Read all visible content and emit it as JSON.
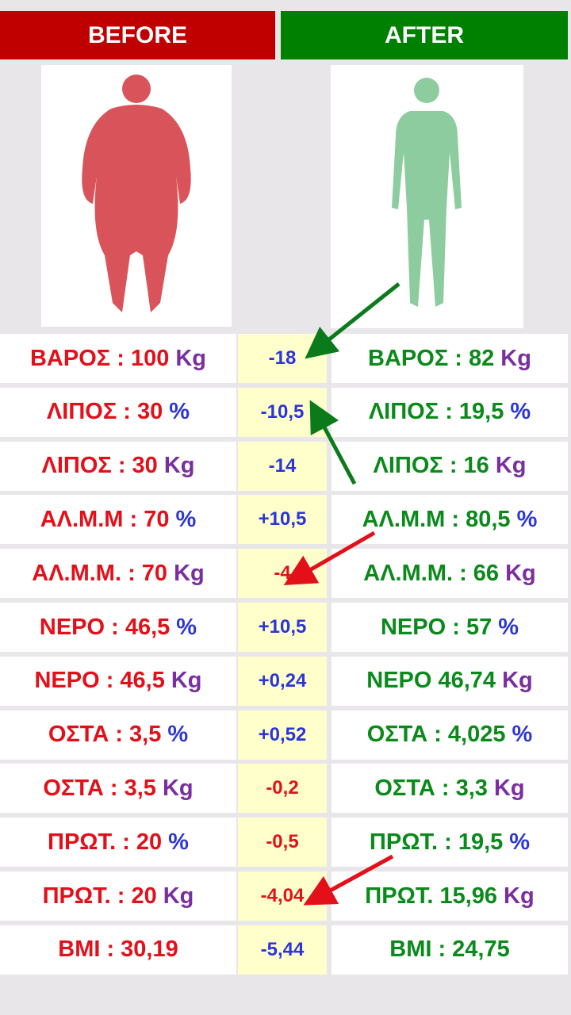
{
  "header": {
    "before": "BEFORE",
    "after": "AFTER"
  },
  "colors": {
    "before": "#e3101a",
    "after": "#0a8a1a",
    "Kg": "#7a2ea0",
    "%": "#2b35d8"
  },
  "rows": [
    {
      "before": {
        "text": "ΒΑΡΟΣ : 100",
        "unit": "Kg"
      },
      "diff": "-18",
      "diff_color": "#2b35d8",
      "after": {
        "text": "ΒΑΡΟΣ : 82",
        "unit": "Kg"
      }
    },
    {
      "before": {
        "text": "ΛΙΠΟΣ : 30",
        "unit": "%"
      },
      "diff": "-10,5",
      "diff_color": "#2b35d8",
      "after": {
        "text": "ΛΙΠΟΣ : 19,5",
        "unit": "%"
      }
    },
    {
      "before": {
        "text": "ΛΙΠΟΣ : 30",
        "unit": "Kg"
      },
      "diff": "-14",
      "diff_color": "#2b35d8",
      "after": {
        "text": "ΛΙΠΟΣ : 16",
        "unit": "Kg"
      }
    },
    {
      "before": {
        "text": "ΑΛ.Μ.Μ : 70",
        "unit": "%"
      },
      "diff": "+10,5",
      "diff_color": "#2b35d8",
      "after": {
        "text": "ΑΛ.Μ.Μ : 80,5",
        "unit": "%"
      }
    },
    {
      "before": {
        "text": "ΑΛ.Μ.Μ. : 70",
        "unit": "Kg"
      },
      "diff": "-4",
      "diff_color": "#e3101a",
      "after": {
        "text": "ΑΛ.Μ.Μ. : 66",
        "unit": "Kg"
      }
    },
    {
      "before": {
        "text": "ΝΕΡΟ : 46,5",
        "unit": "%"
      },
      "diff": "+10,5",
      "diff_color": "#2b35d8",
      "after": {
        "text": "ΝΕΡΟ : 57",
        "unit": "%"
      }
    },
    {
      "before": {
        "text": "ΝΕΡΟ : 46,5",
        "unit": "Kg"
      },
      "diff": "+0,24",
      "diff_color": "#2b35d8",
      "after": {
        "text": "ΝΕΡΟ 46,74",
        "unit": "Kg"
      }
    },
    {
      "before": {
        "text": "ΟΣΤΑ : 3,5",
        "unit": "%"
      },
      "diff": "+0,52",
      "diff_color": "#2b35d8",
      "after": {
        "text": "ΟΣΤΑ : 4,025",
        "unit": "%"
      }
    },
    {
      "before": {
        "text": "ΟΣΤΑ : 3,5",
        "unit": "Kg"
      },
      "diff": "-0,2",
      "diff_color": "#e3101a",
      "after": {
        "text": "ΟΣΤΑ : 3,3",
        "unit": "Kg"
      }
    },
    {
      "before": {
        "text": "ΠΡΩΤ. : 20",
        "unit": "%"
      },
      "diff": "-0,5",
      "diff_color": "#e3101a",
      "after": {
        "text": "ΠΡΩΤ. : 19,5",
        "unit": "%"
      }
    },
    {
      "before": {
        "text": "ΠΡΩΤ. : 20",
        "unit": "Kg"
      },
      "diff": "-4,04",
      "diff_color": "#e3101a",
      "after": {
        "text": "ΠΡΩΤ. 15,96",
        "unit": "Kg"
      }
    },
    {
      "before": {
        "text": "ΒΜΙ : 30,19"
      },
      "diff": "-5,44",
      "diff_color": "#2b35d8",
      "after": {
        "text": "ΒΜΙ : 24,75"
      }
    }
  ]
}
